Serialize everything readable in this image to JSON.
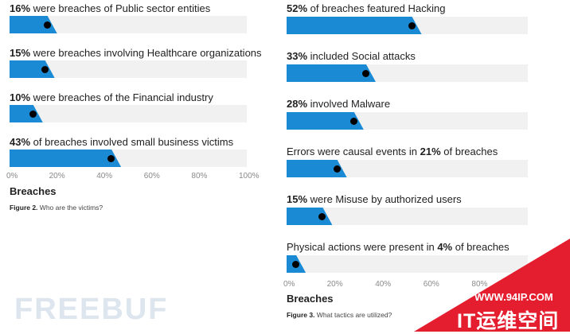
{
  "colors": {
    "fill": "#1a8ad4",
    "track": "#f1f1f1",
    "dot": "#000000",
    "watermark_red": "#e41d2f"
  },
  "chart_data": [
    {
      "type": "bar",
      "orientation": "horizontal",
      "categories": [
        "were breaches of Public sector entities",
        "were breaches involving Healthcare organizations",
        "were breaches of the Financial industry",
        "of breaches involved small business victims"
      ],
      "values": [
        16,
        15,
        10,
        43
      ],
      "labels": [
        {
          "pre": "",
          "bold": "16%",
          "post": " were breaches of Public sector entities"
        },
        {
          "pre": "",
          "bold": "15%",
          "post": " were breaches involving Healthcare organizations"
        },
        {
          "pre": "",
          "bold": "10%",
          "post": " were breaches of the Financial industry"
        },
        {
          "pre": "",
          "bold": "43%",
          "post": " of breaches involved small business victims"
        }
      ],
      "xlim": [
        0,
        100
      ],
      "ticks": [
        "0%",
        "20%",
        "40%",
        "60%",
        "80%",
        "100%"
      ],
      "xlabel": "Breaches",
      "caption_bold": "Figure 2.",
      "caption_text": " Who are the victims?"
    },
    {
      "type": "bar",
      "orientation": "horizontal",
      "categories": [
        "of breaches featured Hacking",
        "included Social attacks",
        "involved Malware",
        "Errors were causal events in 21% of breaches",
        "were Misuse by authorized users",
        "Physical actions were present in 4% of breaches"
      ],
      "values": [
        52,
        33,
        28,
        21,
        15,
        4
      ],
      "labels": [
        {
          "pre": "",
          "bold": "52%",
          "post": " of breaches featured Hacking"
        },
        {
          "pre": "",
          "bold": "33%",
          "post": " included Social attacks"
        },
        {
          "pre": "",
          "bold": "28%",
          "post": " involved Malware"
        },
        {
          "pre": "Errors were causal events in ",
          "bold": "21%",
          "post": " of breaches"
        },
        {
          "pre": "",
          "bold": "15%",
          "post": " were Misuse by authorized users"
        },
        {
          "pre": "Physical actions were present in ",
          "bold": "4%",
          "post": " of breaches"
        }
      ],
      "xlim": [
        0,
        100
      ],
      "ticks": [
        "0%",
        "20%",
        "40%",
        "60%",
        "80%"
      ],
      "xlabel": "Breaches",
      "caption_bold": "Figure 3.",
      "caption_text": " What tactics are utilized?"
    }
  ],
  "watermarks": {
    "left": "FREEBUF",
    "url": "WWW.94IP.COM",
    "cn": "IT运维空间"
  }
}
